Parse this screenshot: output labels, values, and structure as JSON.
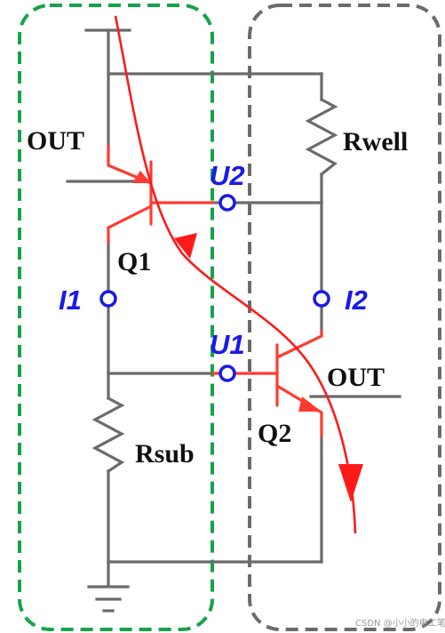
{
  "labels": {
    "out_left": "OUT",
    "out_right": "OUT",
    "q1": "Q1",
    "q2": "Q2",
    "rwell": "Rwell",
    "rsub": "Rsub",
    "i1": "I1",
    "i2": "I2",
    "u1": "U1",
    "u2": "U2"
  },
  "watermark": "CSDN @小小的电工笔记",
  "colors": {
    "annotation_blue": "#1a1ae6",
    "current_path_red": "#ff1a1a",
    "left_box_green": "#16a34a",
    "right_box_gray": "#6b6b6b",
    "wire_gray": "#6b6b6b",
    "highlight_red": "#ff3b30"
  },
  "icons": {
    "ground": "ground-icon",
    "resistor": "resistor-icon",
    "npn_transistor": "npn-transistor-icon",
    "pnp_transistor": "pnp-transistor-icon"
  }
}
